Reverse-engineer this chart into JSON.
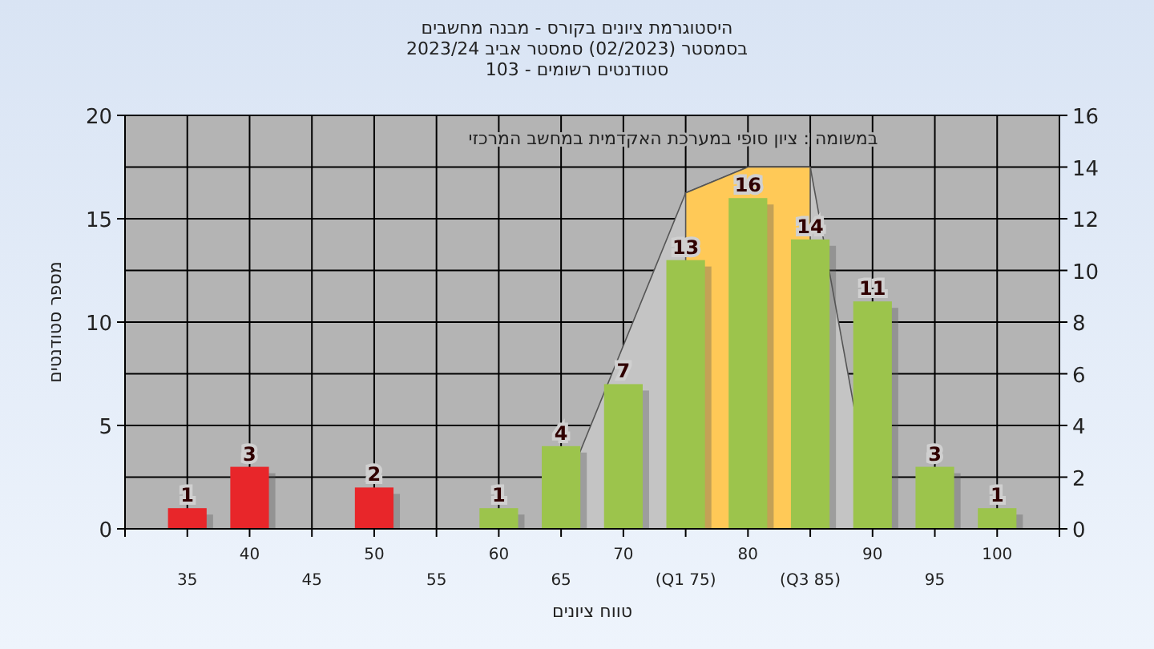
{
  "chart_data": {
    "type": "bar",
    "title": "היסטוגרמת ציונים בקורס - מבנה מחשבים",
    "subtitle": "בסמסטר  (02/2023)  סמסטר אביב 2023/24\nסטודנטים רשומים - 103",
    "xlabel": "טווח ציונים",
    "ylabel": "מספר סטודנטים",
    "annotations": [
      "במשומה : ציון סופי במערכת האקדמית במחשב המרכזי"
    ],
    "series": [
      {
        "type": "area",
        "axis": "y2",
        "x": [
          64,
          75,
          80,
          85,
          90.3
        ],
        "values": [
          0,
          13,
          14,
          14,
          0
        ],
        "color": "#c4c4c4"
      },
      {
        "type": "area",
        "axis": "y2",
        "x": [
          75,
          80,
          85
        ],
        "values": [
          13,
          14,
          14
        ],
        "color": "#ffc957"
      },
      {
        "x": [
          35,
          40,
          50,
          60,
          65,
          70,
          75,
          80,
          85,
          90,
          95,
          100
        ],
        "values": [
          1,
          3,
          2,
          1,
          4,
          7,
          13,
          16,
          14,
          11,
          3,
          1
        ],
        "value_labels": [
          "1",
          "3",
          "2",
          "1",
          "4",
          "7",
          "13",
          "16",
          "14",
          "11",
          "3",
          "1"
        ],
        "colors": [
          "#e8262a",
          "#e8262a",
          "#e8262a",
          "#9cc44c",
          "#9cc44c",
          "#9cc44c",
          "#9cc44c",
          "#9cc44c",
          "#9cc44c",
          "#9cc44c",
          "#9cc44c",
          "#9cc44c"
        ]
      }
    ],
    "xlim": [
      30,
      105
    ],
    "xticks": [
      {
        "value": 30,
        "label": null
      },
      40,
      50,
      60,
      70,
      80,
      90,
      100
    ],
    "x2lim": [
      30,
      105
    ],
    "x2ticks": [
      35,
      45,
      55,
      65,
      {
        "value": 75,
        "label": "(Q1 75)"
      },
      {
        "value": 85,
        "label": "(Q3 85)"
      },
      95,
      {
        "value": 105,
        "label": null
      }
    ],
    "ylim": [
      0,
      20
    ],
    "yticks": [
      0,
      5,
      10,
      15,
      20
    ],
    "y2lim": [
      0,
      16
    ],
    "y2ticks": [
      0,
      2,
      4,
      6,
      8,
      10,
      12,
      14,
      16
    ],
    "grid": true
  }
}
